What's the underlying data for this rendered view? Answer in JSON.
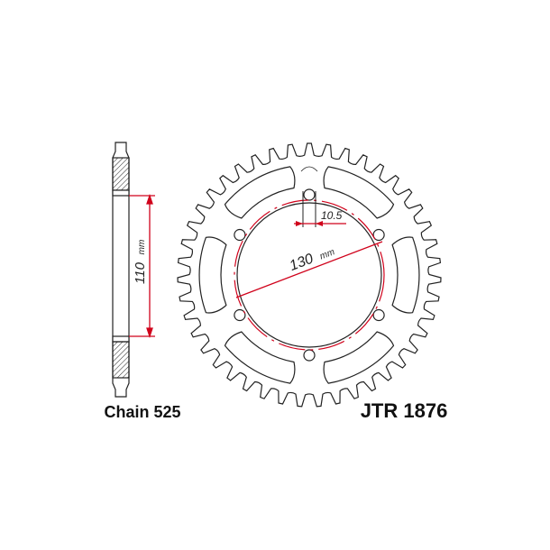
{
  "side_view": {
    "dimension": {
      "value": "110",
      "unit": "mm"
    }
  },
  "sprocket": {
    "hole_dimension": "10.5",
    "pcd_dimension": {
      "value": "130",
      "unit": "mm"
    }
  },
  "footer": {
    "chain": "Chain 525",
    "part_number": "JTR 1876"
  }
}
